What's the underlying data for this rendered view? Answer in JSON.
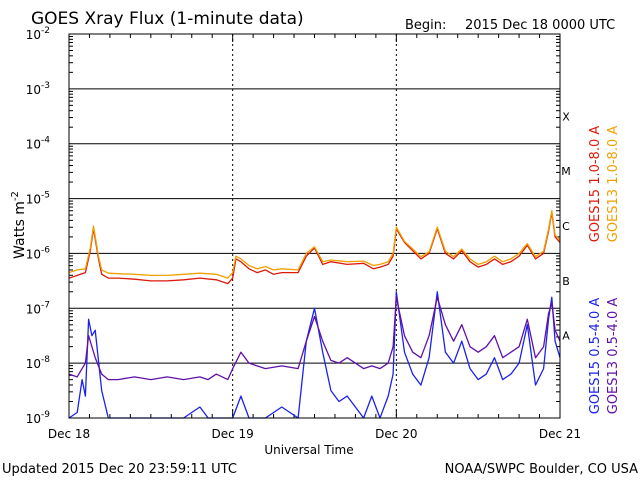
{
  "chart_data": {
    "type": "line",
    "title": "GOES Xray Flux (1-minute data)",
    "begin_label": "Begin:",
    "begin_value": "2015 Dec 18 0000 UTC",
    "xlabel": "Universal Time",
    "ylabel_main": "Watts m",
    "ylabel_exp": "-2",
    "x_ticks": [
      "Dec 18",
      "Dec 19",
      "Dec 20",
      "Dec 21"
    ],
    "x_range_days": [
      0,
      3
    ],
    "y_scale": "log",
    "ylim": [
      1e-09,
      0.01
    ],
    "y_ticks": [
      {
        "value": 0.01,
        "exp": "-2"
      },
      {
        "value": 0.001,
        "exp": "-3"
      },
      {
        "value": 0.0001,
        "exp": "-4"
      },
      {
        "value": 1e-05,
        "exp": "-5"
      },
      {
        "value": 1e-06,
        "exp": "-6"
      },
      {
        "value": 1e-07,
        "exp": "-7"
      },
      {
        "value": 1e-08,
        "exp": "-8"
      },
      {
        "value": 1e-09,
        "exp": "-9"
      }
    ],
    "flare_classes": [
      {
        "label": "X",
        "log_value": -3.5
      },
      {
        "label": "M",
        "log_value": -4.5
      },
      {
        "label": "C",
        "log_value": -5.5
      },
      {
        "label": "B",
        "log_value": -6.5
      },
      {
        "label": "A",
        "log_value": -7.5
      }
    ],
    "series": [
      {
        "name": "GOES15 1.0-8.0 A",
        "color": "#dd1a0a",
        "x_days": [
          0,
          0.05,
          0.1,
          0.13,
          0.15,
          0.18,
          0.2,
          0.24,
          0.3,
          0.4,
          0.5,
          0.6,
          0.7,
          0.8,
          0.9,
          0.97,
          1.0,
          1.02,
          1.05,
          1.1,
          1.15,
          1.2,
          1.25,
          1.3,
          1.4,
          1.45,
          1.5,
          1.55,
          1.6,
          1.7,
          1.8,
          1.86,
          1.9,
          1.95,
          1.98,
          2.0,
          2.05,
          2.1,
          2.15,
          2.2,
          2.25,
          2.3,
          2.35,
          2.4,
          2.45,
          2.5,
          2.55,
          2.6,
          2.65,
          2.7,
          2.75,
          2.8,
          2.85,
          2.9,
          2.93,
          2.95,
          2.97,
          3.0
        ],
        "log_values": [
          -6.45,
          -6.4,
          -6.35,
          -5.95,
          -5.55,
          -6.1,
          -6.38,
          -6.45,
          -6.45,
          -6.47,
          -6.5,
          -6.5,
          -6.48,
          -6.45,
          -6.48,
          -6.55,
          -6.45,
          -6.1,
          -6.15,
          -6.28,
          -6.35,
          -6.3,
          -6.38,
          -6.35,
          -6.35,
          -6.05,
          -5.9,
          -6.2,
          -6.15,
          -6.2,
          -6.18,
          -6.28,
          -6.25,
          -6.2,
          -6.05,
          -5.55,
          -5.8,
          -5.95,
          -6.1,
          -6.0,
          -5.55,
          -6.0,
          -6.1,
          -5.95,
          -6.15,
          -6.25,
          -6.2,
          -6.1,
          -6.2,
          -6.15,
          -6.05,
          -5.85,
          -6.1,
          -6.0,
          -5.6,
          -5.25,
          -5.7,
          -5.8
        ]
      },
      {
        "name": "GOES13 1.0-8.0 A",
        "color": "#f0a000",
        "x_days": [
          0,
          0.05,
          0.1,
          0.13,
          0.15,
          0.18,
          0.2,
          0.24,
          0.3,
          0.4,
          0.5,
          0.6,
          0.7,
          0.8,
          0.9,
          0.97,
          1.0,
          1.02,
          1.05,
          1.1,
          1.15,
          1.2,
          1.25,
          1.3,
          1.4,
          1.45,
          1.5,
          1.55,
          1.6,
          1.7,
          1.8,
          1.86,
          1.9,
          1.95,
          1.98,
          2.0,
          2.05,
          2.1,
          2.15,
          2.2,
          2.25,
          2.3,
          2.35,
          2.4,
          2.45,
          2.5,
          2.55,
          2.6,
          2.65,
          2.7,
          2.75,
          2.8,
          2.85,
          2.9,
          2.93,
          2.95,
          2.97,
          3.0
        ],
        "log_values": [
          -6.35,
          -6.3,
          -6.28,
          -5.9,
          -5.5,
          -6.05,
          -6.3,
          -6.36,
          -6.37,
          -6.38,
          -6.4,
          -6.4,
          -6.38,
          -6.36,
          -6.38,
          -6.45,
          -6.35,
          -6.05,
          -6.1,
          -6.22,
          -6.28,
          -6.24,
          -6.3,
          -6.28,
          -6.3,
          -6.0,
          -5.88,
          -6.15,
          -6.12,
          -6.15,
          -6.14,
          -6.22,
          -6.2,
          -6.15,
          -6.0,
          -5.52,
          -5.78,
          -5.92,
          -6.06,
          -5.97,
          -5.52,
          -5.96,
          -6.06,
          -5.92,
          -6.1,
          -6.2,
          -6.15,
          -6.05,
          -6.15,
          -6.1,
          -6.0,
          -5.82,
          -6.06,
          -5.96,
          -5.56,
          -5.22,
          -5.66,
          -5.76
        ]
      },
      {
        "name": "GOES15 0.5-4.0 A",
        "color": "#1a22ee",
        "x_days": [
          0,
          0.05,
          0.08,
          0.1,
          0.12,
          0.14,
          0.16,
          0.2,
          0.24,
          0.3,
          0.4,
          0.5,
          0.6,
          0.7,
          0.8,
          0.85,
          0.9,
          0.97,
          1.0,
          1.05,
          1.1,
          1.2,
          1.3,
          1.4,
          1.45,
          1.5,
          1.55,
          1.6,
          1.65,
          1.7,
          1.75,
          1.8,
          1.85,
          1.9,
          1.95,
          1.98,
          2.0,
          2.05,
          2.1,
          2.15,
          2.2,
          2.25,
          2.3,
          2.35,
          2.4,
          2.45,
          2.5,
          2.55,
          2.6,
          2.65,
          2.7,
          2.75,
          2.8,
          2.85,
          2.9,
          2.93,
          2.95,
          2.97,
          3.0
        ],
        "log_values": [
          -9.0,
          -8.9,
          -8.3,
          -8.6,
          -7.2,
          -7.5,
          -7.4,
          -8.5,
          -9.0,
          -9.0,
          -9.0,
          -9.0,
          -9.0,
          -9.0,
          -8.8,
          -9.0,
          -9.0,
          -9.0,
          -9.0,
          -8.6,
          -9.0,
          -9.0,
          -8.8,
          -9.0,
          -7.6,
          -7.0,
          -7.8,
          -8.5,
          -8.7,
          -8.6,
          -8.8,
          -9.0,
          -8.6,
          -9.0,
          -8.6,
          -8.2,
          -6.7,
          -7.8,
          -8.2,
          -8.4,
          -7.9,
          -6.7,
          -7.8,
          -8.0,
          -7.6,
          -8.1,
          -8.3,
          -8.2,
          -7.9,
          -8.3,
          -8.2,
          -8.0,
          -7.3,
          -8.4,
          -8.1,
          -7.2,
          -6.8,
          -7.6,
          -7.9
        ]
      },
      {
        "name": "GOES13 0.5-4.0 A",
        "color": "#6010a8",
        "x_days": [
          0,
          0.05,
          0.08,
          0.1,
          0.12,
          0.14,
          0.16,
          0.2,
          0.24,
          0.3,
          0.4,
          0.5,
          0.6,
          0.7,
          0.8,
          0.85,
          0.9,
          0.97,
          1.0,
          1.05,
          1.1,
          1.2,
          1.3,
          1.4,
          1.45,
          1.5,
          1.55,
          1.6,
          1.65,
          1.7,
          1.75,
          1.8,
          1.85,
          1.9,
          1.95,
          1.98,
          2.0,
          2.05,
          2.1,
          2.15,
          2.2,
          2.25,
          2.3,
          2.35,
          2.4,
          2.45,
          2.5,
          2.55,
          2.6,
          2.65,
          2.7,
          2.75,
          2.8,
          2.85,
          2.9,
          2.93,
          2.95,
          2.97,
          3.0
        ],
        "log_values": [
          -8.2,
          -8.25,
          -8.1,
          -8.0,
          -7.5,
          -7.7,
          -7.9,
          -8.2,
          -8.3,
          -8.3,
          -8.25,
          -8.3,
          -8.25,
          -8.3,
          -8.25,
          -8.3,
          -8.2,
          -8.3,
          -8.1,
          -7.8,
          -8.0,
          -8.1,
          -8.05,
          -8.1,
          -7.6,
          -7.15,
          -7.6,
          -7.95,
          -8.0,
          -7.9,
          -8.0,
          -8.1,
          -8.05,
          -8.1,
          -8.0,
          -7.7,
          -6.8,
          -7.5,
          -7.8,
          -7.9,
          -7.5,
          -6.8,
          -7.3,
          -7.6,
          -7.3,
          -7.7,
          -7.8,
          -7.7,
          -7.5,
          -7.9,
          -7.8,
          -7.7,
          -7.2,
          -7.9,
          -7.7,
          -7.1,
          -6.9,
          -7.4,
          -7.6
        ]
      }
    ]
  },
  "footer": {
    "updated": "Updated 2015 Dec 20 23:59:11 UTC",
    "credit": "NOAA/SWPC Boulder, CO USA"
  }
}
